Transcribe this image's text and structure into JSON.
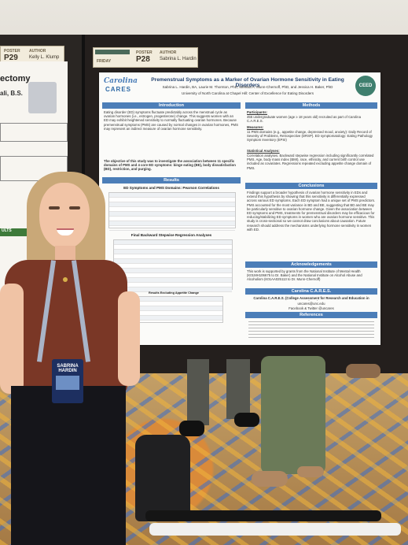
{
  "left_card": {
    "poster_label": "POSTER",
    "poster_no": "P29",
    "author_label": "AUTHOR",
    "author": "Kelly L. Klump"
  },
  "main_card": {
    "poster_label": "POSTER",
    "poster_no": "P28",
    "author_label": "AUTHOR",
    "author": "Sabrina L. Hardin",
    "day": "FRIDAY"
  },
  "left_poster": {
    "title_fragment": "ectomy",
    "name_fragment": "ali, B.S.",
    "section": "ULTS"
  },
  "poster": {
    "logo_top": "Carolina",
    "logo_bottom": "CARES",
    "title": "Premenstrual Symptoms as a Marker of Ovarian Hormone Sensitivity in Eating Disorders",
    "authors": "Sabrina L. Hardin, BA, Laurie M. Thornton, PhD, Melissa A. Munn-Chernoff, PhD, and Jessica H. Baker, PhD",
    "affiliation": "University of North Carolina at Chapel Hill: Center of Excellence for Eating Disorders",
    "sections": {
      "introduction": "Introduction",
      "methods": "Methods",
      "results": "Results",
      "conclusions": "Conclusions",
      "acknowledgements": "Acknowledgements",
      "carolina_cares": "Carolina C.A.R.E.S.",
      "references": "References"
    },
    "intro_text": "Eating disorder (ED) symptoms fluctuate predictably across the menstrual cycle as ovarian hormones (i.e., estrogen, progesterone) change. This suggests women with an ED may exhibit heightened sensitivity to normally fluctuating ovarian hormones. Because premenstrual symptoms (PMS) are caused by normal changes in ovarian hormones, PMS may represent an indirect measure of ovarian hormone sensitivity.",
    "objective": "The objective of this study was to investigate the association between 11 specific domains of PMS and 4 core ED symptoms: binge eating (BE), body dissatisfaction (BD), restriction, and purging.",
    "participants_label": "Participants:",
    "participants": "455 undergraduate women (age ≥ 18 years old) recruited as part of Carolina C.A.R.E.S.",
    "measures_label": "Measures:",
    "measures": "11 PMS domains (e.g., appetite change, depressed mood, anxiety): Daily Record of Severity of Problems, Retrospective (DRSP). ED symptomatology: Eating Pathology Symptom Inventory (EPSI)",
    "analysis_label": "Statistical Analyses:",
    "analysis": "Correlation analyses. Backward stepwise regression including significantly correlated PMS. Age, body mass index (BMI), race, ethnicity, and current birth control use included as covariates. Regressions repeated excluding appetite change domain of PMS.",
    "table1_title": "ED Symptoms and PMS Domains: Pearson Correlations",
    "table2_title": "Final Backward Stepwise Regression Analyses",
    "table3_title": "Results Excluding Appetite Change",
    "conclusions_text": "Findings support a broader hypothesis of ovarian hormone sensitivity in EDs and extend this hypothesis by showing that this sensitivity is differentially expressed across various ED symptoms. Each ED symptom had a unique set of PMS predictors. PMS accounted for the most variance in BD and BE, suggesting that BD and BE may be particularly sensitive to ovarian hormone change. Given the association between ED symptoms and PMS, treatments for premenstrual disorders may be efficacious for reducing/stabilizing ED symptoms in women who are ovarian hormone sensitive. This study is cross-sectional so we cannot draw conclusions about causation. Future research should address the mechanisms underlying hormone sensitivity in women with ED.",
    "ack_text": "This work is supported by grants from the National Institute of Mental Health (K01MH106675 to Dr. Baker) and the National Institute on Alcohol Abuse and Alcoholism (K01AA025113 to Dr. Munn-Chernoff)",
    "cares_text": "Carolina C.A.R.E.S. (College Assessment for Research and Education in Science)",
    "cares_contact": "uncares@unc.edu",
    "cares_social": "Facebook & Twitter @uncares",
    "ceed_logo": "CEED"
  },
  "badge": {
    "first": "SABRINA",
    "last": "HARDIN"
  },
  "colors": {
    "accent": "#4c7eb8",
    "shirt": "#7a3726",
    "board": "#241f1d"
  }
}
